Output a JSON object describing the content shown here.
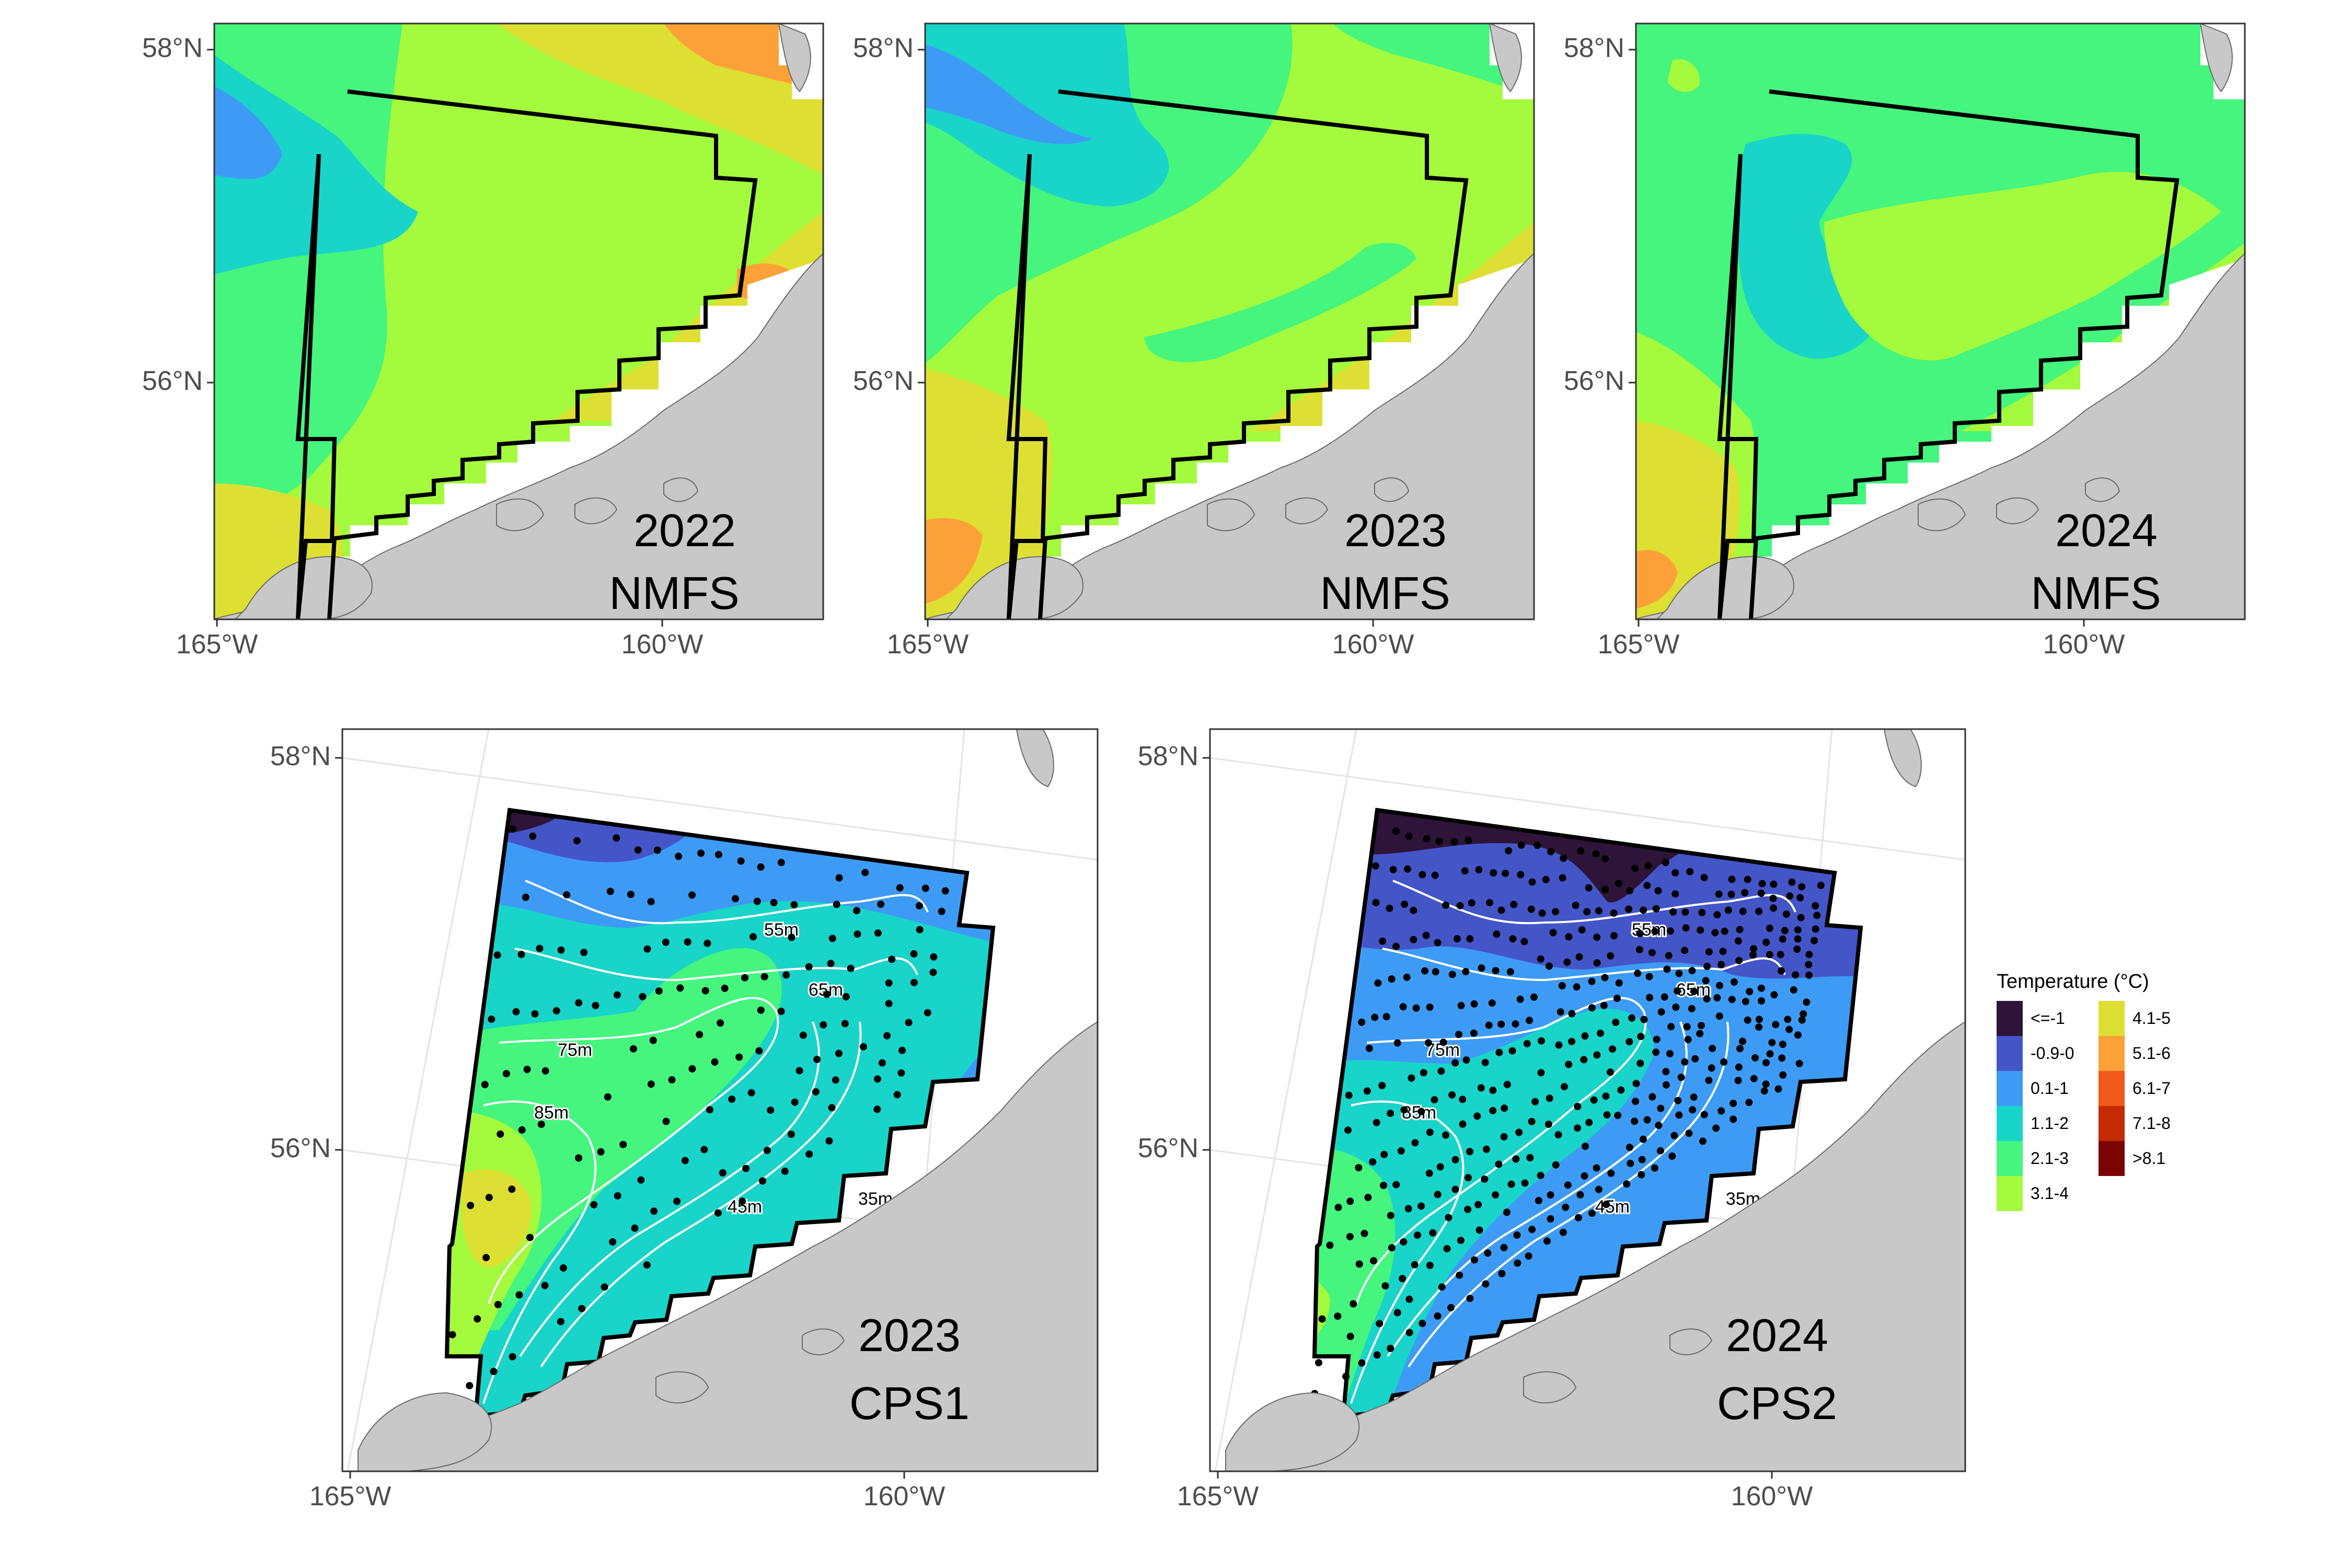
{
  "colors": {
    "land": "#c8c8c8",
    "land_stroke": "#6b6b6b",
    "boundary": "#000000",
    "contour": "#ffffff",
    "station": "#000000",
    "graticule": "#e4e4e4",
    "frame": "#333333"
  },
  "axis_labels": {
    "lat_58": "58°N",
    "lat_56": "56°N",
    "lon_165": "165°W",
    "lon_160": "160°W"
  },
  "panels": [
    {
      "id": "nmfs-2022",
      "year": "2022",
      "survey": "NMFS"
    },
    {
      "id": "nmfs-2023",
      "year": "2023",
      "survey": "NMFS"
    },
    {
      "id": "nmfs-2024",
      "year": "2024",
      "survey": "NMFS"
    },
    {
      "id": "cps-2023",
      "year": "2023",
      "survey": "CPS1"
    },
    {
      "id": "cps-2024",
      "year": "2024",
      "survey": "CPS2"
    }
  ],
  "contour_labels": [
    "55m",
    "65m",
    "75m",
    "85m",
    "45m",
    "35m"
  ],
  "legend": {
    "title": "Temperature (°C)",
    "items": [
      {
        "label": "<=-1",
        "color": "#2e1438"
      },
      {
        "label": "-0.9-0",
        "color": "#4455c8"
      },
      {
        "label": "0.1-1",
        "color": "#3d9bf5"
      },
      {
        "label": "1.1-2",
        "color": "#19d4c8"
      },
      {
        "label": "2.1-3",
        "color": "#45f57e"
      },
      {
        "label": "3.1-4",
        "color": "#a4fa3c"
      },
      {
        "label": "4.1-5",
        "color": "#dde032"
      },
      {
        "label": "5.1-6",
        "color": "#fca138"
      },
      {
        "label": "6.1-7",
        "color": "#f05a1a"
      },
      {
        "label": "7.1-8",
        "color": "#c42a04"
      },
      {
        "label": ">8.1",
        "color": "#7a0403"
      }
    ]
  }
}
